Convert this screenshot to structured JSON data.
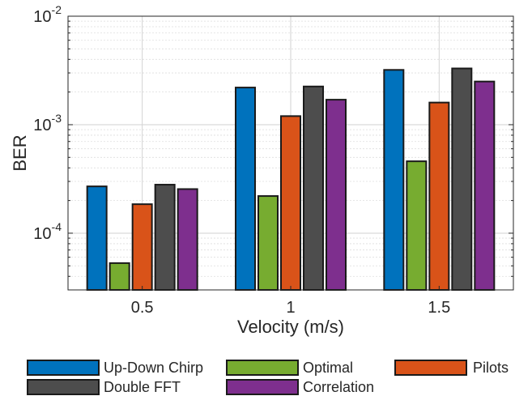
{
  "chart_data": {
    "type": "bar",
    "title": "",
    "xlabel": "Velocity (m/s)",
    "ylabel": "BER",
    "yscale": "log",
    "ylim": [
      3e-05,
      0.01
    ],
    "grid": true,
    "categories": [
      "0.5",
      "1",
      "1.5"
    ],
    "yticks": [
      {
        "value": 0.0001,
        "base": "10",
        "exp": "-4"
      },
      {
        "value": 0.001,
        "base": "10",
        "exp": "-3"
      },
      {
        "value": 0.01,
        "base": "10",
        "exp": "-2"
      }
    ],
    "legend_position": "bottom",
    "series": [
      {
        "name": "Up-Down Chirp",
        "color": "#0072BD",
        "values": [
          0.00027,
          0.0022,
          0.0032
        ]
      },
      {
        "name": "Optimal",
        "color": "#77AC30",
        "values": [
          5.3e-05,
          0.00022,
          0.00046
        ]
      },
      {
        "name": "Pilots",
        "color": "#D95319",
        "values": [
          0.000185,
          0.0012,
          0.0016
        ]
      },
      {
        "name": "Double FFT",
        "color": "#4D4D4D",
        "values": [
          0.00028,
          0.00225,
          0.0033
        ]
      },
      {
        "name": "Correlation",
        "color": "#7E2F8E",
        "values": [
          0.000255,
          0.0017,
          0.0025
        ]
      }
    ]
  }
}
